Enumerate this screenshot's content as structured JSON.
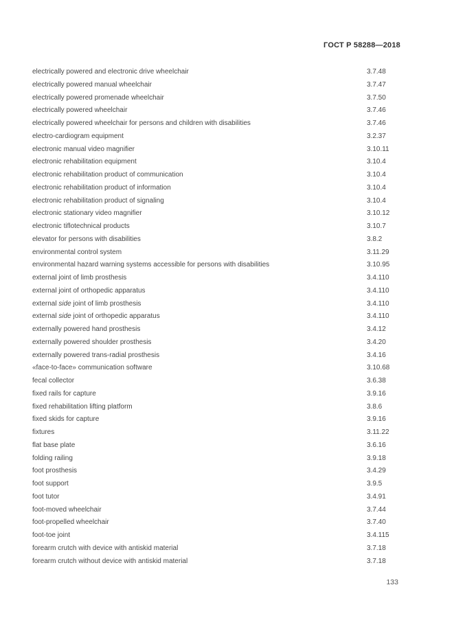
{
  "page": {
    "header": "ГОСТ Р 58288—2018",
    "page_number": "133"
  },
  "index": {
    "entries": [
      {
        "term": "electrically powered and electronic drive wheelchair",
        "ref": "3.7.48"
      },
      {
        "term": "electrically powered manual wheelchair",
        "ref": "3.7.47"
      },
      {
        "term": "electrically powered promenade wheelchair",
        "ref": "3.7.50"
      },
      {
        "term": "electrically powered wheelchair",
        "ref": "3.7.46"
      },
      {
        "term": "electrically powered wheelchair for persons and children with disabilities",
        "ref": "3.7.46"
      },
      {
        "term": "electro-cardiogram equipment",
        "ref": "3.2.37"
      },
      {
        "term": "electronic manual video magnifier",
        "ref": "3.10.11"
      },
      {
        "term": "electronic rehabilitation equipment",
        "ref": "3.10.4"
      },
      {
        "term": "electronic rehabilitation product of communication",
        "ref": "3.10.4"
      },
      {
        "term": "electronic rehabilitation product of information",
        "ref": "3.10.4"
      },
      {
        "term": "electronic rehabilitation product of signaling",
        "ref": "3.10.4"
      },
      {
        "term": "electronic stationary video magnifier",
        "ref": "3.10.12"
      },
      {
        "term": "electronic tiflotechnical products",
        "ref": "3.10.7"
      },
      {
        "term": "elevator for persons with disabilities",
        "ref": "3.8.2"
      },
      {
        "term": "environmental control system",
        "ref": "3.11.29"
      },
      {
        "term": "environmental hazard warning systems accessible for persons with disabilities",
        "ref": "3.10.95"
      },
      {
        "term": "external joint of limb prosthesis",
        "ref": "3.4.110"
      },
      {
        "term": "external joint of orthopedic apparatus",
        "ref": "3.4.110"
      },
      {
        "term": "external side joint of limb prosthesis",
        "italic": "side",
        "ref": "3.4.110"
      },
      {
        "term": "external side joint of orthopedic apparatus",
        "italic": "side",
        "ref": "3.4.110"
      },
      {
        "term": "externally powered hand prosthesis",
        "ref": "3.4.12"
      },
      {
        "term": "externally powered shoulder prosthesis",
        "ref": "3.4.20"
      },
      {
        "term": "externally powered trans-radial prosthesis",
        "ref": "3.4.16"
      },
      {
        "term": "«face-to-face» communication software",
        "ref": "3.10.68"
      },
      {
        "term": "fecal collector",
        "ref": "3.6.38"
      },
      {
        "term": "fixed rails for capture",
        "ref": "3.9.16"
      },
      {
        "term": "fixed rehabilitation lifting platform",
        "ref": "3.8.6"
      },
      {
        "term": "fixed skids for capture",
        "ref": "3.9.16"
      },
      {
        "term": "fixtures",
        "ref": "3.11.22"
      },
      {
        "term": "flat base plate",
        "ref": "3.6.16"
      },
      {
        "term": "folding railing",
        "ref": "3.9.18"
      },
      {
        "term": "foot prosthesis",
        "ref": "3.4.29"
      },
      {
        "term": "foot support",
        "ref": "3.9.5"
      },
      {
        "term": "foot tutor",
        "ref": "3.4.91"
      },
      {
        "term": "foot-moved wheelchair",
        "ref": "3.7.44"
      },
      {
        "term": "foot-propelled wheelchair",
        "ref": "3.7.40"
      },
      {
        "term": "foot-toe joint",
        "ref": "3.4.115"
      },
      {
        "term": "forearm crutch with device with antiskid material",
        "ref": "3.7.18"
      },
      {
        "term": "forearm crutch without device with antiskid material",
        "ref": "3.7.18"
      }
    ]
  }
}
